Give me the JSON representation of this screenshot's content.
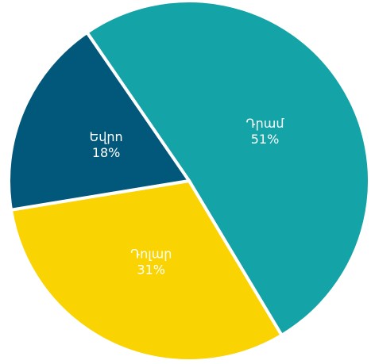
{
  "chart_data": {
    "type": "pie",
    "categories": [
      "Դրամ",
      "Դոլար",
      "Եվրո"
    ],
    "values": [
      51,
      31,
      18
    ],
    "value_labels": [
      "51%",
      "31%",
      "18%"
    ],
    "colors": [
      "#14a3a6",
      "#fad402",
      "#02587b"
    ]
  }
}
